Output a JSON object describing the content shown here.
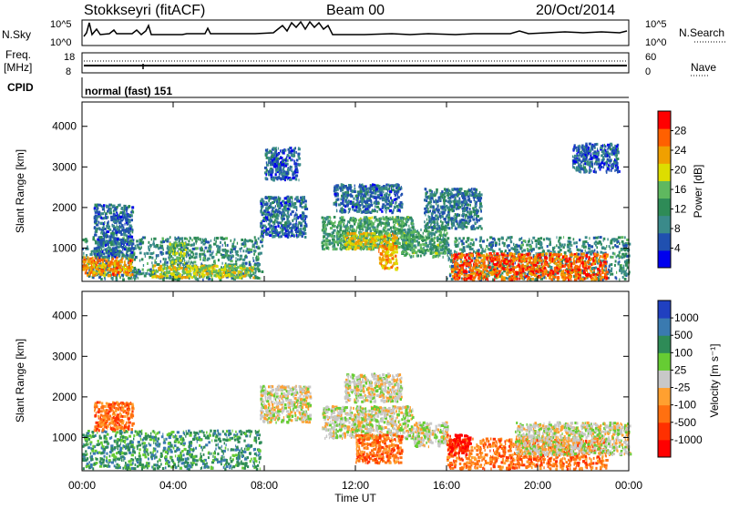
{
  "header": {
    "station": "Stokkseyri (fitACF)",
    "beam": "Beam 00",
    "date": "20/Oct/2014"
  },
  "top_panels": {
    "nsky_label": "N.Sky",
    "nsky_left_ticks": [
      "10^5",
      "10^0"
    ],
    "nsky_right_ticks": [
      "10^5",
      "10^0"
    ],
    "nsearch_label": "N.Search",
    "freq_label_1": "Freq.",
    "freq_label_2": "[MHz]",
    "freq_ticks": [
      "18",
      "8"
    ],
    "nave_ticks": [
      "60",
      "0"
    ],
    "nave_label": "Nave",
    "cpid_label": "CPID",
    "cpid_text": "normal (fast) 151"
  },
  "chart_data": [
    {
      "type": "heatmap",
      "name": "Power",
      "ylabel": "Slant Range [km]",
      "xlabel": "Time UT",
      "xticks": [
        "00:00",
        "04:00",
        "08:00",
        "12:00",
        "16:00",
        "20:00",
        "00:00"
      ],
      "xlim_hours": [
        0,
        24
      ],
      "ylim_km": [
        180,
        4600
      ],
      "yticks": [
        1000,
        2000,
        3000,
        4000
      ],
      "colorbar_label": "Power [dB]",
      "colorbar_ticks": [
        "28",
        "24",
        "20",
        "16",
        "12",
        "8",
        "4"
      ],
      "colorbar_range": [
        0,
        30
      ],
      "colors": [
        "#0000ee",
        "#2050b0",
        "#3a8a8a",
        "#2e8b57",
        "#5fb85f",
        "#dddd00",
        "#f0a000",
        "#ff6000",
        "#ff0000"
      ],
      "regions": [
        {
          "t0": 0.0,
          "t1": 7.9,
          "r0": 250,
          "r1": 1300,
          "value": 9
        },
        {
          "t0": 0.0,
          "t1": 2.2,
          "r0": 350,
          "r1": 800,
          "value": 24
        },
        {
          "t0": 0.5,
          "t1": 2.2,
          "r0": 800,
          "r1": 2100,
          "value": 6
        },
        {
          "t0": 3.8,
          "t1": 4.5,
          "r0": 650,
          "r1": 1200,
          "value": 15
        },
        {
          "t0": 3.0,
          "t1": 7.5,
          "r0": 300,
          "r1": 600,
          "value": 18
        },
        {
          "t0": 7.8,
          "t1": 9.8,
          "r0": 1300,
          "r1": 2300,
          "value": 6
        },
        {
          "t0": 8.0,
          "t1": 9.5,
          "r0": 2700,
          "r1": 3500,
          "value": 5
        },
        {
          "t0": 10.5,
          "t1": 14.5,
          "r0": 1000,
          "r1": 1800,
          "value": 12
        },
        {
          "t0": 11.5,
          "t1": 13.8,
          "r0": 1000,
          "r1": 1400,
          "value": 20
        },
        {
          "t0": 13.0,
          "t1": 13.8,
          "r0": 500,
          "r1": 1100,
          "value": 22
        },
        {
          "t0": 11.0,
          "t1": 14.0,
          "r0": 1900,
          "r1": 2600,
          "value": 6
        },
        {
          "t0": 14.0,
          "t1": 16.0,
          "r0": 800,
          "r1": 1500,
          "value": 12
        },
        {
          "t0": 16.0,
          "t1": 24.0,
          "r0": 250,
          "r1": 1300,
          "value": 9
        },
        {
          "t0": 16.2,
          "t1": 23.0,
          "r0": 250,
          "r1": 900,
          "value": 26
        },
        {
          "t0": 21.5,
          "t1": 23.5,
          "r0": 2900,
          "r1": 3600,
          "value": 5
        },
        {
          "t0": 15.0,
          "t1": 17.5,
          "r0": 1500,
          "r1": 2500,
          "value": 7
        }
      ]
    },
    {
      "type": "heatmap",
      "name": "Velocity",
      "ylabel": "Slant Range [km]",
      "xlabel": "Time UT",
      "xticks": [
        "00:00",
        "04:00",
        "08:00",
        "12:00",
        "16:00",
        "20:00",
        "00:00"
      ],
      "xlim_hours": [
        0,
        24
      ],
      "ylim_km": [
        180,
        4600
      ],
      "yticks": [
        1000,
        2000,
        3000,
        4000
      ],
      "colorbar_label": "Velocity [m s⁻¹]",
      "colorbar_ticks": [
        "1000",
        "500",
        "100",
        "25",
        "-25",
        "-100",
        "-500",
        "-1000"
      ],
      "colors": [
        "#2040c0",
        "#3a7ab0",
        "#2e8b57",
        "#66cc33",
        "#c8c8c8",
        "#ffa030",
        "#ff7010",
        "#ff3000",
        "#ff0000"
      ],
      "regions": [
        {
          "t0": 0.0,
          "t1": 7.8,
          "r0": 250,
          "r1": 1200,
          "value": 2
        },
        {
          "t0": 0.5,
          "t1": 2.2,
          "r0": 1200,
          "r1": 1900,
          "value": 6
        },
        {
          "t0": 7.8,
          "t1": 10.0,
          "r0": 1400,
          "r1": 2300,
          "value": 4
        },
        {
          "t0": 10.5,
          "t1": 14.5,
          "r0": 1000,
          "r1": 1800,
          "value": 4
        },
        {
          "t0": 11.5,
          "t1": 14.0,
          "r0": 1900,
          "r1": 2600,
          "value": 4
        },
        {
          "t0": 12.0,
          "t1": 14.0,
          "r0": 400,
          "r1": 1100,
          "value": 6
        },
        {
          "t0": 14.5,
          "t1": 16.0,
          "r0": 800,
          "r1": 1400,
          "value": 4
        },
        {
          "t0": 16.0,
          "t1": 23.0,
          "r0": 250,
          "r1": 1000,
          "value": 6
        },
        {
          "t0": 19.0,
          "t1": 24.0,
          "r0": 600,
          "r1": 1400,
          "value": 4
        },
        {
          "t0": 16.0,
          "t1": 17.0,
          "r0": 600,
          "r1": 1100,
          "value": 8
        }
      ]
    }
  ]
}
